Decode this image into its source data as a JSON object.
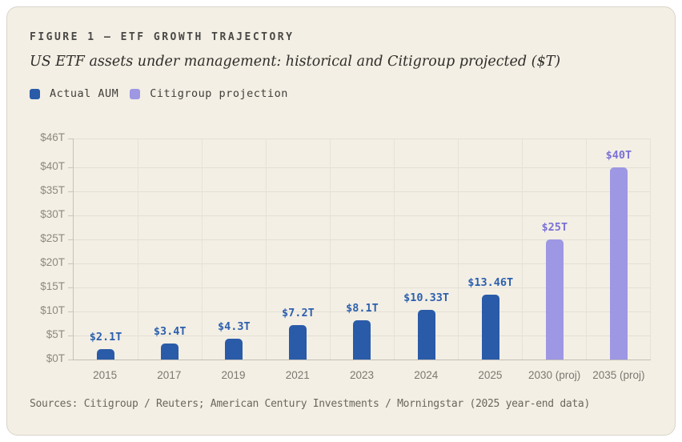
{
  "figure": {
    "title": "FIGURE 1 — ETF GROWTH TRAJECTORY",
    "subtitle": "US ETF assets under management: historical and Citigroup projected ($T)",
    "source": "Sources: Citigroup / Reuters; American Century Investments / Morningstar (2025 year-end data)"
  },
  "chart_data": {
    "type": "bar",
    "title": "US ETF assets under management: historical and Citigroup projected ($T)",
    "categories": [
      "2015",
      "2017",
      "2019",
      "2021",
      "2023",
      "2024",
      "2025",
      "2030 (proj)",
      "2035 (proj)"
    ],
    "values": [
      2.1,
      3.4,
      4.3,
      7.2,
      8.1,
      10.33,
      13.46,
      25,
      40
    ],
    "bar_labels": [
      "$2.1T",
      "$3.4T",
      "$4.3T",
      "$7.2T",
      "$8.1T",
      "$10.33T",
      "$13.46T",
      "$25T",
      "$40T"
    ],
    "bar_series": [
      0,
      0,
      0,
      0,
      0,
      0,
      0,
      1,
      1
    ],
    "series": [
      {
        "name": "Actual AUM",
        "color": "#2a5ba8",
        "label_color": "#2d60ad"
      },
      {
        "name": "Citigroup projection",
        "color": "#9e97e4",
        "label_color": "#7b71d6"
      }
    ],
    "xlabel": "",
    "ylabel": "",
    "ylim": [
      0,
      46
    ],
    "yticks": [
      {
        "label": "$0T",
        "value": 0
      },
      {
        "label": "$5T",
        "value": 5
      },
      {
        "label": "$10T",
        "value": 10
      },
      {
        "label": "$15T",
        "value": 15
      },
      {
        "label": "$20T",
        "value": 20
      },
      {
        "label": "$25T",
        "value": 25
      },
      {
        "label": "$30T",
        "value": 30
      },
      {
        "label": "$35T",
        "value": 35
      },
      {
        "label": "$40T",
        "value": 40
      },
      {
        "label": "$46T",
        "value": 46
      }
    ],
    "grid": true,
    "legend_position": "top-left"
  }
}
